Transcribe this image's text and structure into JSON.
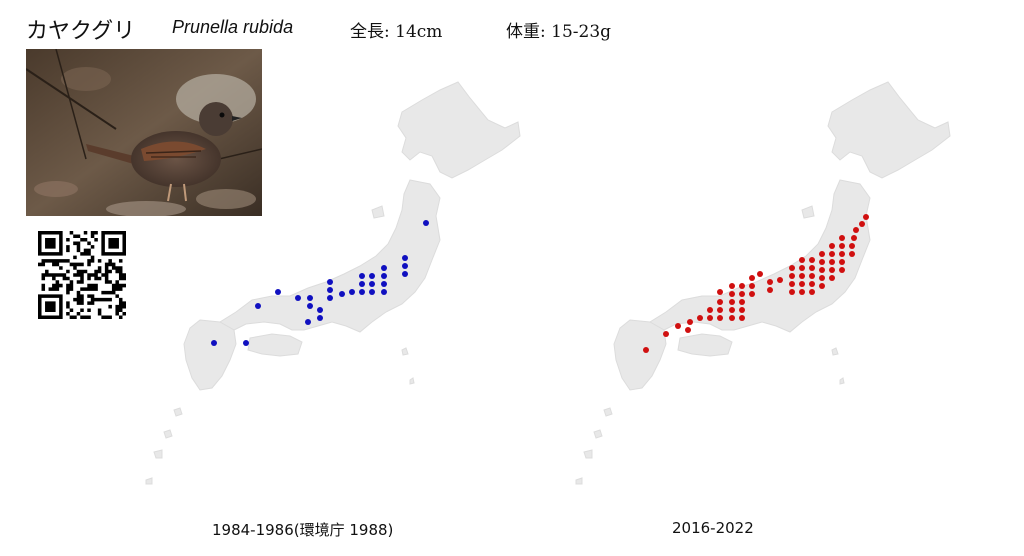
{
  "header": {
    "japanese_name": "カヤクグリ",
    "scientific_name": "Prunella rubida",
    "length": "全長: 14cm",
    "weight": "体重: 15-23g"
  },
  "photo": {
    "icon": "bird-photo-icon"
  },
  "qr": {
    "icon": "qr-code-icon"
  },
  "maps": [
    {
      "caption": "1984-1986(環境庁 1988)",
      "dot_color": "#1010c0",
      "land_color": "#e8e8e8"
    },
    {
      "caption": "2016-2022",
      "dot_color": "#d01010",
      "land_color": "#e8e8e8"
    }
  ]
}
